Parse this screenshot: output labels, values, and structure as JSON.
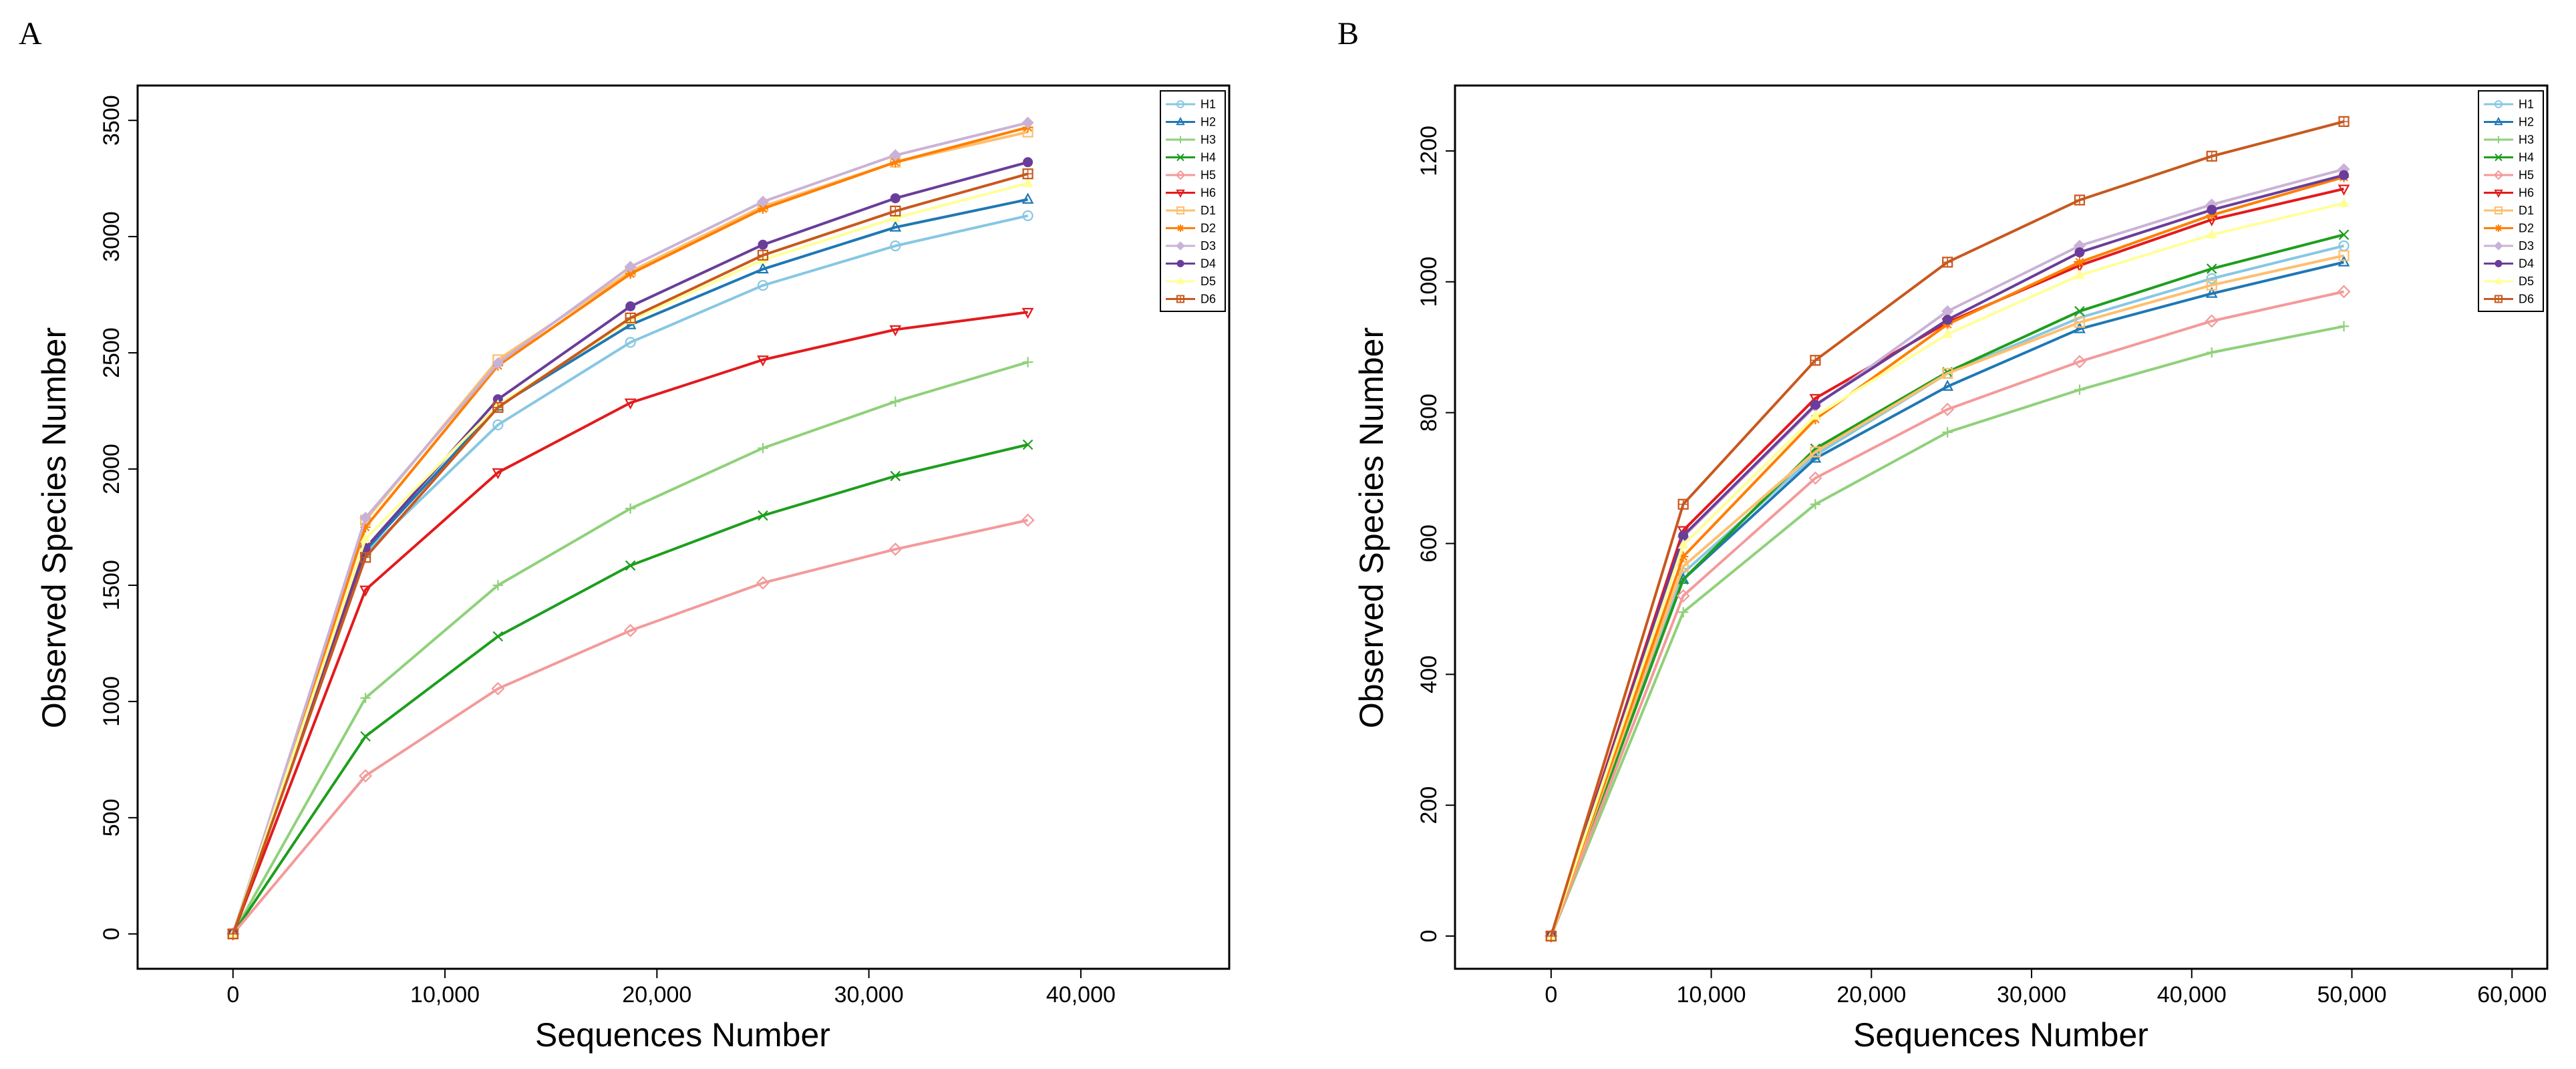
{
  "chart_data": [
    {
      "panel": "A",
      "type": "line",
      "xlabel": "Sequences Number",
      "ylabel": "Observed Species Number",
      "xlim": [
        -4500,
        47000
      ],
      "ylim": [
        -150,
        3650
      ],
      "xticks": [
        0,
        10000,
        20000,
        30000,
        40000
      ],
      "xtick_labels": [
        "0",
        "10,000",
        "20,000",
        "30,000",
        "40,000"
      ],
      "yticks": [
        0,
        500,
        1000,
        1500,
        2000,
        2500,
        3000,
        3500
      ],
      "ytick_labels": [
        "0",
        "500",
        "1000",
        "1500",
        "2000",
        "2500",
        "3000",
        "3500"
      ],
      "grid": false,
      "legend_position": "top-right",
      "x": [
        0,
        6250,
        12500,
        18750,
        25000,
        31250,
        37500
      ],
      "series": [
        {
          "name": "H1",
          "color": "#87c7e3",
          "marker": "circle",
          "values": [
            0,
            1640,
            2190,
            2545,
            2790,
            2960,
            3090
          ]
        },
        {
          "name": "H2",
          "color": "#1f78b4",
          "marker": "triangle-up",
          "values": [
            0,
            1650,
            2270,
            2620,
            2860,
            3040,
            3160
          ]
        },
        {
          "name": "H3",
          "color": "#8fd17a",
          "marker": "plus",
          "values": [
            0,
            1015,
            1500,
            1830,
            2090,
            2290,
            2460
          ]
        },
        {
          "name": "H4",
          "color": "#1e9e1e",
          "marker": "cross",
          "values": [
            0,
            850,
            1280,
            1585,
            1800,
            1970,
            2105
          ]
        },
        {
          "name": "H5",
          "color": "#f39a9a",
          "marker": "diamond",
          "values": [
            0,
            680,
            1055,
            1305,
            1510,
            1655,
            1780
          ]
        },
        {
          "name": "H6",
          "color": "#e31a1c",
          "marker": "triangle-down",
          "values": [
            0,
            1480,
            1985,
            2285,
            2470,
            2600,
            2675
          ]
        },
        {
          "name": "D1",
          "color": "#fdbf6f",
          "marker": "square",
          "values": [
            0,
            1780,
            2470,
            2850,
            3130,
            3320,
            3450
          ]
        },
        {
          "name": "D2",
          "color": "#ff7f00",
          "marker": "star",
          "values": [
            0,
            1750,
            2445,
            2840,
            3120,
            3320,
            3470
          ]
        },
        {
          "name": "D3",
          "color": "#cab2d6",
          "marker": "diamond-filled",
          "values": [
            0,
            1790,
            2455,
            2870,
            3150,
            3350,
            3490
          ]
        },
        {
          "name": "D4",
          "color": "#6a3d9a",
          "marker": "circle-filled",
          "values": [
            0,
            1660,
            2300,
            2700,
            2965,
            3165,
            3320
          ]
        },
        {
          "name": "D5",
          "color": "#ffff99",
          "marker": "triangle-filled",
          "values": [
            0,
            1700,
            2275,
            2640,
            2900,
            3080,
            3230
          ]
        },
        {
          "name": "D6",
          "color": "#c8581e",
          "marker": "square-boxed",
          "values": [
            0,
            1620,
            2265,
            2650,
            2920,
            3110,
            3270
          ]
        }
      ]
    },
    {
      "panel": "B",
      "type": "line",
      "xlabel": "Sequences Number",
      "ylabel": "Observed Species Number",
      "xlim": [
        -6000,
        62200
      ],
      "ylim": [
        -50,
        1300
      ],
      "xticks": [
        0,
        10000,
        20000,
        30000,
        40000,
        50000,
        60000
      ],
      "xtick_labels": [
        "0",
        "10,000",
        "20,000",
        "30,000",
        "40,000",
        "50,000",
        "60,000"
      ],
      "yticks": [
        0,
        200,
        400,
        600,
        800,
        1000,
        1200
      ],
      "ytick_labels": [
        "0",
        "200",
        "400",
        "600",
        "800",
        "1000",
        "1200"
      ],
      "grid": false,
      "legend_position": "top-right",
      "x": [
        0,
        8250,
        16500,
        24750,
        33000,
        41250,
        49500
      ],
      "series": [
        {
          "name": "H1",
          "color": "#87c7e3",
          "marker": "circle",
          "values": [
            0,
            555,
            735,
            860,
            945,
            1005,
            1055
          ]
        },
        {
          "name": "H2",
          "color": "#1f78b4",
          "marker": "triangle-up",
          "values": [
            0,
            545,
            730,
            840,
            928,
            982,
            1030
          ]
        },
        {
          "name": "H3",
          "color": "#8fd17a",
          "marker": "plus",
          "values": [
            0,
            495,
            660,
            770,
            835,
            892,
            932
          ]
        },
        {
          "name": "H4",
          "color": "#1e9e1e",
          "marker": "cross",
          "values": [
            0,
            545,
            745,
            862,
            955,
            1020,
            1072
          ]
        },
        {
          "name": "H5",
          "color": "#f39a9a",
          "marker": "diamond",
          "values": [
            0,
            520,
            700,
            805,
            878,
            940,
            985
          ]
        },
        {
          "name": "H6",
          "color": "#e31a1c",
          "marker": "triangle-down",
          "values": [
            0,
            620,
            822,
            938,
            1025,
            1095,
            1142
          ]
        },
        {
          "name": "D1",
          "color": "#fdbf6f",
          "marker": "square",
          "values": [
            0,
            565,
            740,
            860,
            938,
            995,
            1040
          ]
        },
        {
          "name": "D2",
          "color": "#ff7f00",
          "marker": "star",
          "values": [
            0,
            580,
            790,
            935,
            1030,
            1102,
            1160
          ]
        },
        {
          "name": "D3",
          "color": "#cab2d6",
          "marker": "diamond-filled",
          "values": [
            0,
            610,
            810,
            955,
            1055,
            1118,
            1172
          ]
        },
        {
          "name": "D4",
          "color": "#6a3d9a",
          "marker": "circle-filled",
          "values": [
            0,
            612,
            812,
            942,
            1045,
            1110,
            1163
          ]
        },
        {
          "name": "D5",
          "color": "#ffff99",
          "marker": "triangle-filled",
          "values": [
            0,
            598,
            795,
            920,
            1010,
            1072,
            1120
          ]
        },
        {
          "name": "D6",
          "color": "#c8581e",
          "marker": "square-boxed",
          "values": [
            0,
            660,
            880,
            1030,
            1125,
            1192,
            1245
          ]
        }
      ]
    }
  ]
}
